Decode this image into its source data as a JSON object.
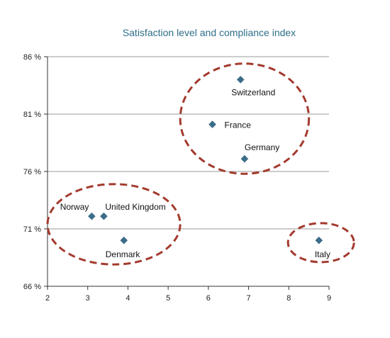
{
  "chart_data": {
    "type": "scatter",
    "title": "Satisfaction level and compliance index",
    "xlabel": "",
    "ylabel": "",
    "xlim": [
      2,
      9
    ],
    "ylim": [
      66,
      86
    ],
    "x_ticks": [
      "2",
      "3",
      "4",
      "5",
      "6",
      "7",
      "8",
      "9"
    ],
    "y_ticks": [
      "66 %",
      "71 %",
      "76 %",
      "81 %",
      "86 %"
    ],
    "grid": "horizontal",
    "colors": {
      "marker": "#3b6e8a",
      "ellipse": "#a33a2e",
      "title": "#2f6f8a",
      "grid": "#9a9a9a"
    },
    "points": [
      {
        "label": "Switzerland",
        "x": 6.8,
        "y": 84.0
      },
      {
        "label": "France",
        "x": 6.1,
        "y": 80.1
      },
      {
        "label": "Germany",
        "x": 6.9,
        "y": 77.1
      },
      {
        "label": "Norway",
        "x": 3.1,
        "y": 72.1
      },
      {
        "label": "United Kingdom",
        "x": 3.4,
        "y": 72.1
      },
      {
        "label": "Denmark",
        "x": 3.9,
        "y": 70.0
      },
      {
        "label": "Italy",
        "x": 8.75,
        "y": 70.0
      }
    ],
    "clusters": [
      {
        "cx": 6.9,
        "cy": 80.6,
        "rx": 1.6,
        "ry": 4.8
      },
      {
        "cx": 3.65,
        "cy": 71.4,
        "rx": 1.65,
        "ry": 3.5
      },
      {
        "cx": 8.8,
        "cy": 69.8,
        "rx": 0.82,
        "ry": 1.7
      }
    ]
  }
}
